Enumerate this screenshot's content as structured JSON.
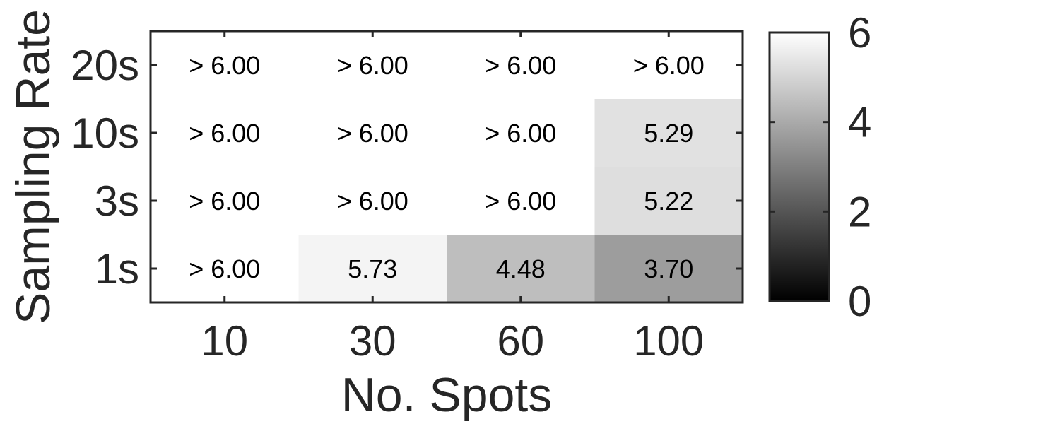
{
  "chart_data": {
    "type": "heatmap",
    "title": "",
    "xlabel": "No. Spots",
    "ylabel": "Sampling Rate",
    "x_categories": [
      "10",
      "30",
      "60",
      "100"
    ],
    "y_categories": [
      "20s",
      "10s",
      "3s",
      "1s"
    ],
    "values": [
      [
        6.0,
        6.0,
        6.0,
        6.0
      ],
      [
        6.0,
        6.0,
        6.0,
        5.29
      ],
      [
        6.0,
        6.0,
        6.0,
        5.22
      ],
      [
        6.0,
        5.73,
        4.48,
        3.7
      ]
    ],
    "cell_labels": [
      [
        "> 6.00",
        "> 6.00",
        "> 6.00",
        "> 6.00"
      ],
      [
        "> 6.00",
        "> 6.00",
        "> 6.00",
        "5.29"
      ],
      [
        "> 6.00",
        "> 6.00",
        "> 6.00",
        "5.22"
      ],
      [
        "> 6.00",
        "5.73",
        "4.48",
        "3.70"
      ]
    ],
    "colormap": "gray",
    "color_range": [
      0,
      6
    ],
    "colorbar_ticks": [
      "0",
      "2",
      "4",
      "6"
    ],
    "colorbar_position": "right",
    "grid": false
  }
}
